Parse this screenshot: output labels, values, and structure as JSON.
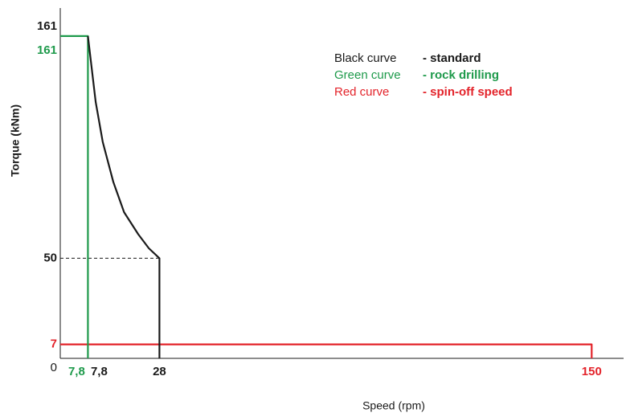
{
  "chart_data": {
    "type": "line",
    "x_label": "Speed (rpm)",
    "y_label": "Torque (kNm)",
    "xlim": [
      0,
      159
    ],
    "ylim": [
      0,
      175
    ],
    "xticks": [
      {
        "value": 7.8,
        "label": "7,8",
        "color": "#1e9a4b"
      },
      {
        "value": 7.8,
        "label": "7,8"
      },
      28,
      {
        "value": 150,
        "label": "150",
        "color": "#e3232a"
      }
    ],
    "yticks": [
      0,
      {
        "value": 7,
        "label": "7",
        "color": "#e3232a"
      },
      50,
      161,
      {
        "value": 161,
        "label": "161",
        "color": "#1e9a4b"
      }
    ],
    "series": [
      {
        "name": "Black curve",
        "description": "- standard",
        "color": "#1a1a1a",
        "x": [
          7.8,
          10,
          12,
          15,
          18,
          22,
          25,
          28,
          28
        ],
        "values": [
          161,
          128,
          108,
          88,
          73,
          62,
          55,
          50,
          0
        ]
      },
      {
        "name": "Green curve",
        "description": "- rock drilling",
        "color": "#1e9a4b",
        "x": [
          0,
          7.8,
          7.8
        ],
        "values": [
          161,
          161,
          0
        ]
      },
      {
        "name": "Red curve",
        "description": "- spin-off speed",
        "color": "#e3232a",
        "x": [
          0,
          150,
          150
        ],
        "values": [
          7,
          7,
          0
        ]
      }
    ]
  }
}
